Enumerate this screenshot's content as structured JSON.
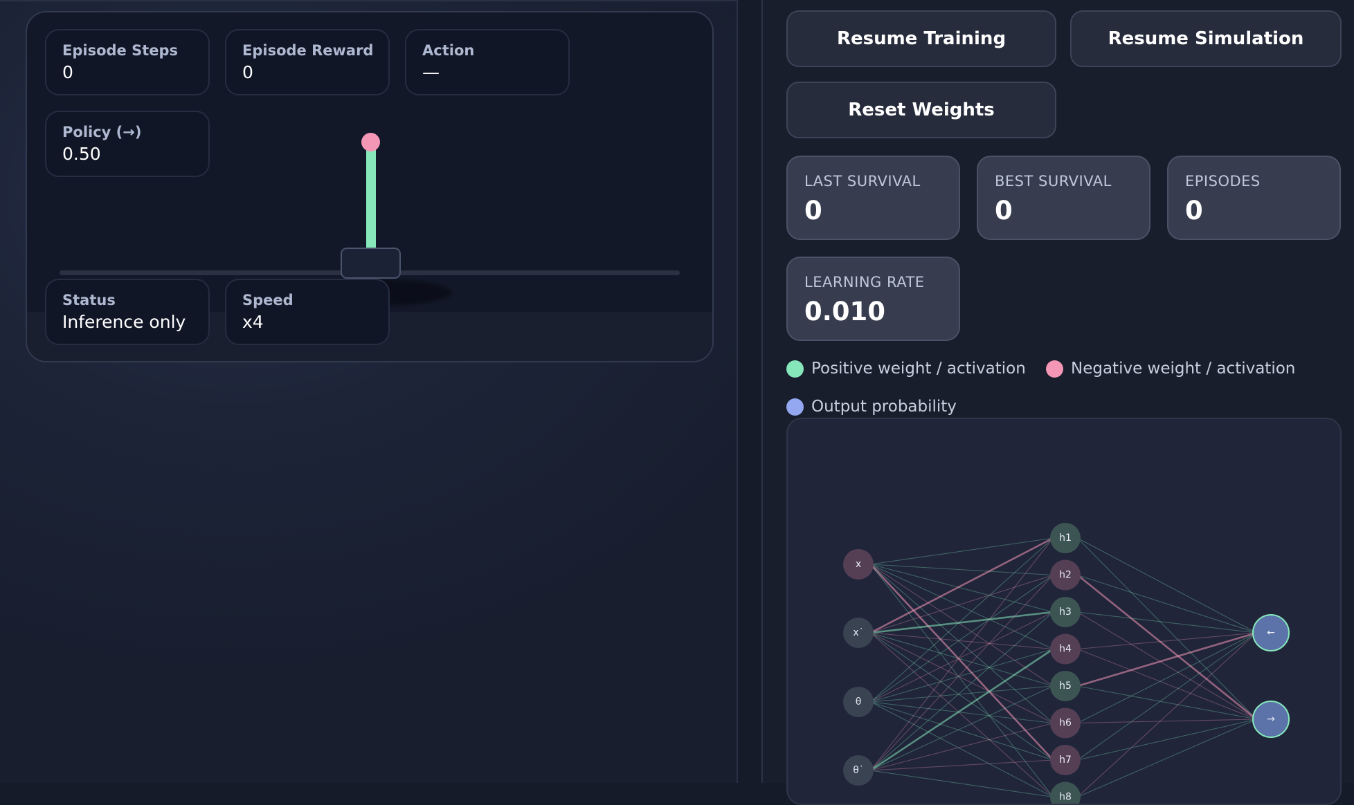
{
  "simulation": {
    "stats": {
      "episode_steps": {
        "label": "Episode Steps",
        "value": "0"
      },
      "episode_reward": {
        "label": "Episode Reward",
        "value": "0"
      },
      "action": {
        "label": "Action",
        "value": "—"
      },
      "policy": {
        "label": "Policy (→)",
        "value": "0.50"
      },
      "status": {
        "label": "Status",
        "value": "Inference only"
      },
      "speed": {
        "label": "Speed",
        "value": "x4"
      }
    }
  },
  "controls": {
    "resume_training": "Resume Training",
    "resume_simulation": "Resume Simulation",
    "reset_weights": "Reset Weights"
  },
  "metrics": {
    "last_survival": {
      "label": "LAST SURVIVAL",
      "value": "0"
    },
    "best_survival": {
      "label": "BEST SURVIVAL",
      "value": "0"
    },
    "episodes": {
      "label": "EPISODES",
      "value": "0"
    },
    "learning_rate": {
      "label": "LEARNING RATE",
      "value": "0.010"
    }
  },
  "legend": {
    "positive": {
      "label": "Positive weight / activation",
      "color": "#86e8ba"
    },
    "negative": {
      "label": "Negative weight / activation",
      "color": "#f497b6"
    },
    "output": {
      "label": "Output probability",
      "color": "#93a8f0"
    }
  },
  "network": {
    "input_nodes": [
      "x",
      "x˙",
      "θ",
      "θ˙"
    ],
    "hidden_nodes": [
      "h1",
      "h2",
      "h3",
      "h4",
      "h5",
      "h6",
      "h7",
      "h8"
    ],
    "output_nodes": [
      "←",
      "→"
    ],
    "hidden_polarity": [
      "positive",
      "negative",
      "positive",
      "negative",
      "positive",
      "negative",
      "negative",
      "positive"
    ],
    "colors": {
      "positive_node": "#3c5552",
      "negative_node": "#553f55",
      "neutral_node": "#3a4352",
      "output_node": "#5b73a8",
      "output_border": "#86e8ba"
    }
  }
}
